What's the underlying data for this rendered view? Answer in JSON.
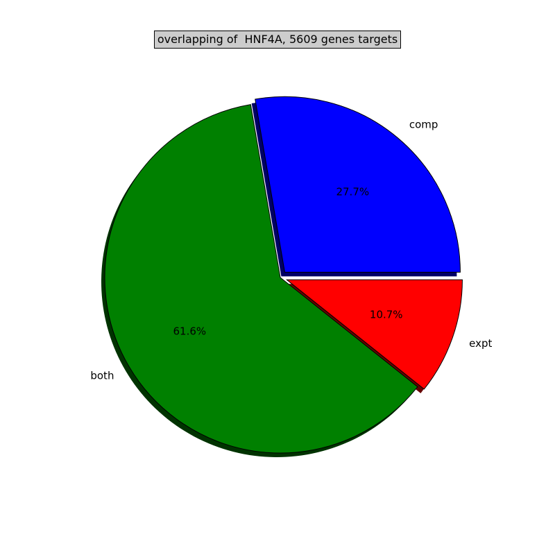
{
  "chart_data": {
    "type": "pie",
    "title": "overlapping of  HNF4A, 5609 genes targets",
    "slices": [
      {
        "label": "comp",
        "value": 27.7,
        "pct_label": "27.7%",
        "color": "#0000ff",
        "shadow": "#000066",
        "explode": true
      },
      {
        "label": "both",
        "value": 61.6,
        "pct_label": "61.6%",
        "color": "#008000",
        "shadow": "#003300",
        "explode": false
      },
      {
        "label": "expt",
        "value": 10.7,
        "pct_label": "10.7%",
        "color": "#ff0000",
        "shadow": "#660000",
        "explode": true
      }
    ],
    "start_angle_deg": 0,
    "direction": "counterclockwise",
    "shadow": true
  }
}
